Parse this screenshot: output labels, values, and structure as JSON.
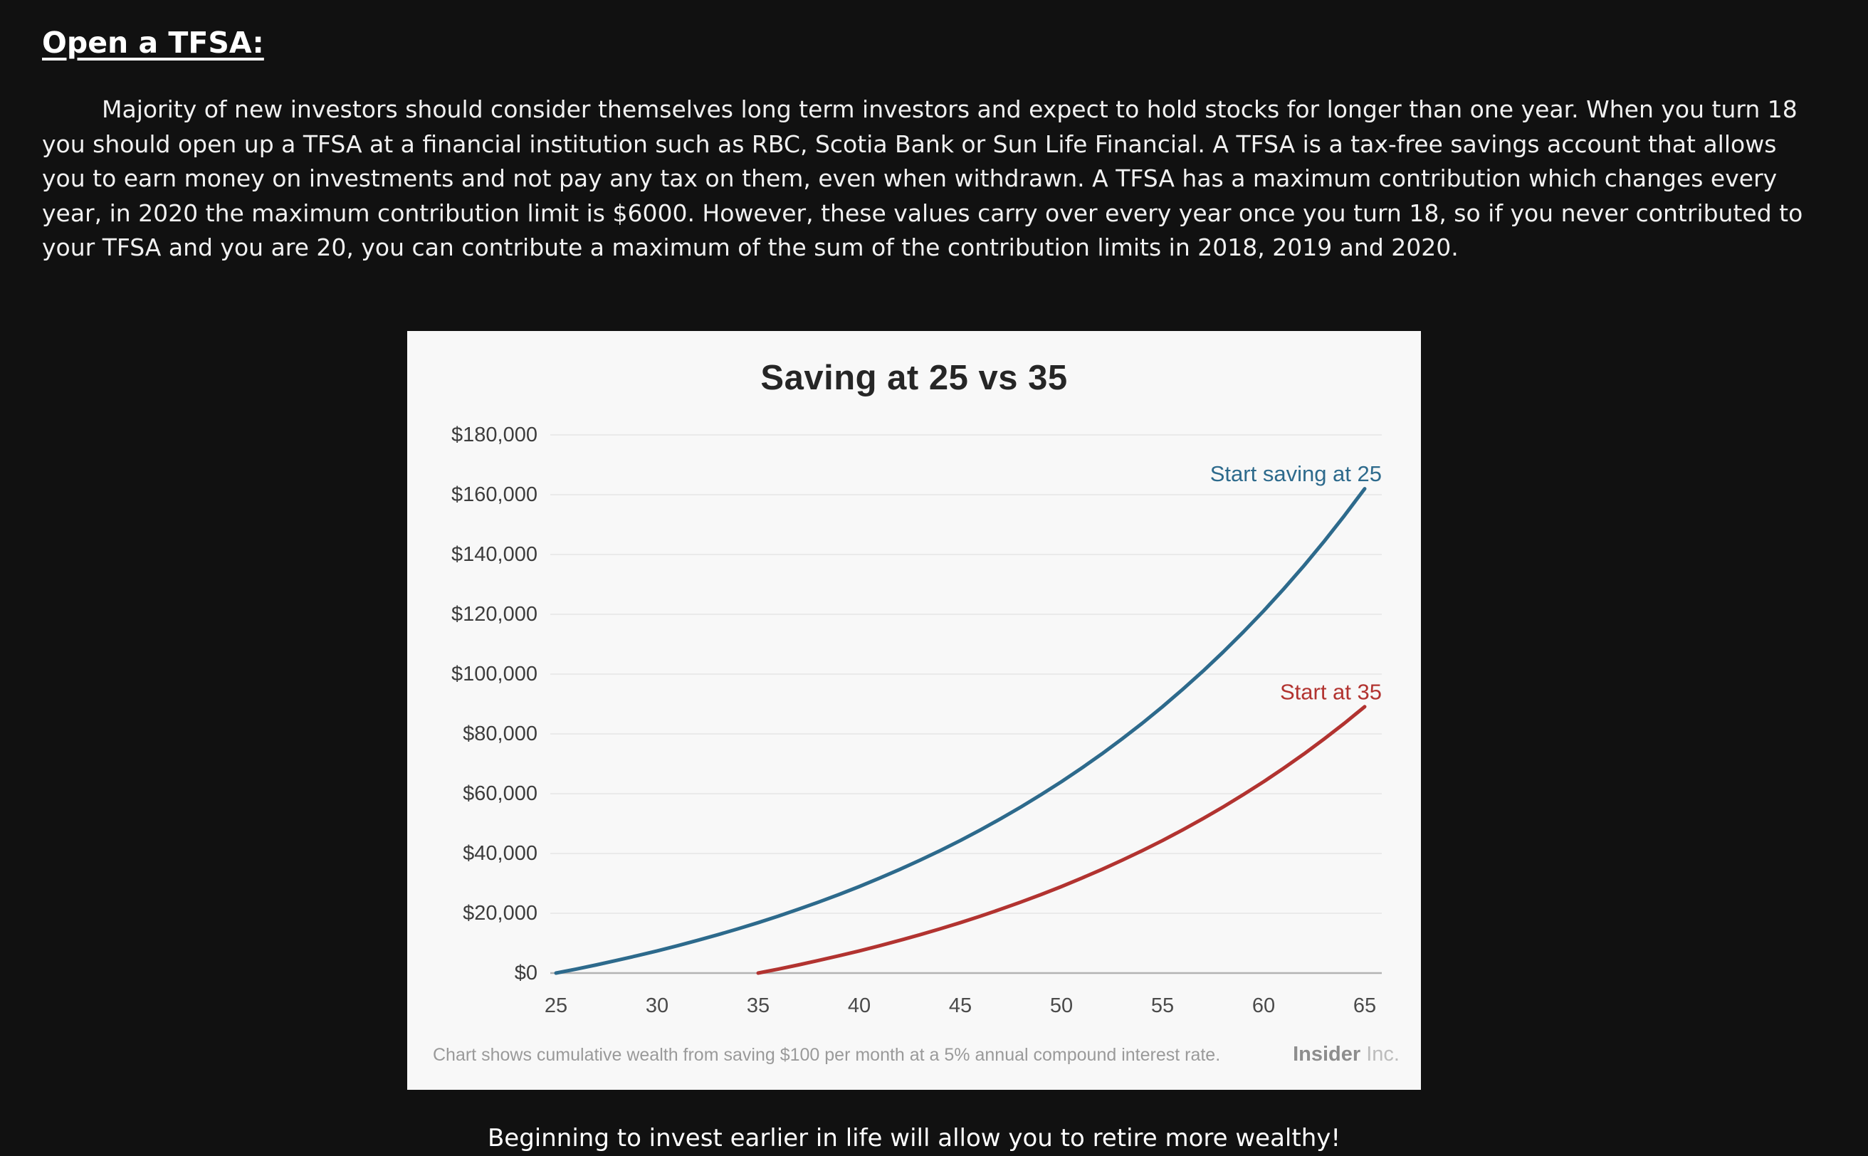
{
  "heading": "Open a TFSA:",
  "paragraph": "Majority of new investors should consider themselves long term investors and expect to hold stocks for longer than one year. When you turn 18 you should open up a TFSA at a financial institution such as RBC, Scotia Bank or Sun Life Financial. A TFSA is a tax-free savings account that allows you to earn money on investments and not pay any tax on them, even when withdrawn. A TFSA has a maximum contribution which changes every year, in 2020 the maximum contribution limit is $6000. However, these values carry over every year once you turn 18, so if you never contributed to your TFSA and you are 20, you can contribute a maximum of the sum of the contribution limits in 2018, 2019 and 2020.",
  "closing": "Beginning to invest earlier in life will allow you to retire more wealthy!",
  "chart": {
    "title": "Saving at 25 vs 35",
    "note": "Chart shows cumulative wealth from saving $100 per month at a 5% annual compound interest rate.",
    "brand_bold": "Insider",
    "brand_light": "Inc."
  },
  "chart_data": {
    "type": "line",
    "title": "Saving at 25 vs 35",
    "xlabel": "",
    "ylabel": "",
    "xlim": [
      25,
      65
    ],
    "ylim": [
      0,
      180000
    ],
    "grid": "horizontal",
    "legend_position": "inline-right",
    "x_ticks": [
      25,
      30,
      35,
      40,
      45,
      50,
      55,
      60,
      65
    ],
    "y_ticks": [
      {
        "value": 0,
        "label": "$0"
      },
      {
        "value": 20000,
        "label": "$20,000"
      },
      {
        "value": 40000,
        "label": "$40,000"
      },
      {
        "value": 60000,
        "label": "$60,000"
      },
      {
        "value": 80000,
        "label": "$80,000"
      },
      {
        "value": 100000,
        "label": "$100,000"
      },
      {
        "value": 120000,
        "label": "$120,000"
      },
      {
        "value": 140000,
        "label": "$140,000"
      },
      {
        "value": 160000,
        "label": "$160,000"
      },
      {
        "value": 180000,
        "label": "$180,000"
      }
    ],
    "series": [
      {
        "name": "Start saving at 25",
        "color": "#2d6a8c",
        "x": [
          25,
          26,
          27,
          28,
          29,
          30,
          31,
          32,
          33,
          34,
          35,
          36,
          37,
          38,
          39,
          40,
          41,
          42,
          43,
          44,
          45,
          46,
          47,
          48,
          49,
          50,
          51,
          52,
          53,
          54,
          55,
          56,
          57,
          58,
          59,
          60,
          61,
          62,
          63,
          64,
          65
        ],
        "values": [
          0,
          1341,
          2749,
          4228,
          5780,
          7410,
          9122,
          10919,
          12806,
          14788,
          16868,
          19053,
          21347,
          23755,
          26284,
          28940,
          31727,
          34655,
          37729,
          40957,
          44345,
          47904,
          51640,
          55563,
          59682,
          64007,
          68549,
          73317,
          78325,
          83582,
          89103,
          94899,
          100985,
          107375,
          114084,
          121130,
          128527,
          136295,
          144450,
          153014,
          162006
        ]
      },
      {
        "name": "Start at 35",
        "color": "#b23330",
        "x": [
          35,
          36,
          37,
          38,
          39,
          40,
          41,
          42,
          43,
          44,
          45,
          46,
          47,
          48,
          49,
          50,
          51,
          52,
          53,
          54,
          55,
          56,
          57,
          58,
          59,
          60,
          61,
          62,
          63,
          64,
          65
        ],
        "values": [
          0,
          1341,
          2749,
          4228,
          5780,
          7410,
          9122,
          10919,
          12806,
          14788,
          16868,
          19053,
          21347,
          23755,
          26284,
          28940,
          31727,
          34655,
          37729,
          40957,
          44345,
          47904,
          51640,
          55563,
          59682,
          64007,
          68549,
          73317,
          78325,
          83582,
          89103
        ]
      }
    ],
    "source_note": "Chart shows cumulative wealth from saving $100 per month at a 5% annual compound interest rate.",
    "source_brand": "Insider Inc."
  }
}
